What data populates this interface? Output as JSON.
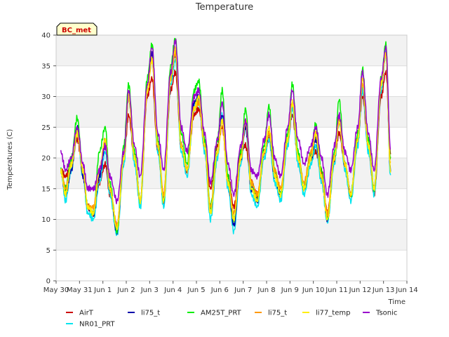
{
  "chart_data": {
    "type": "line",
    "title": "Temperature",
    "xlabel": "Time",
    "ylabel": "Temperatures (C)",
    "badge": "BC_met",
    "ylim": [
      0,
      40
    ],
    "yticks": [
      0,
      5,
      10,
      15,
      20,
      25,
      30,
      35,
      40
    ],
    "xlim": [
      0,
      15
    ],
    "xticks": [
      {
        "x": 0,
        "label": "May 30"
      },
      {
        "x": 1,
        "label": "May 31"
      },
      {
        "x": 2,
        "label": "Jun 1"
      },
      {
        "x": 3,
        "label": "Jun 2"
      },
      {
        "x": 4,
        "label": "Jun 3"
      },
      {
        "x": 5,
        "label": "Jun 4"
      },
      {
        "x": 6,
        "label": "Jun 5"
      },
      {
        "x": 7,
        "label": "Jun 6"
      },
      {
        "x": 8,
        "label": "Jun 7"
      },
      {
        "x": 9,
        "label": "Jun 8"
      },
      {
        "x": 10,
        "label": "Jun 9"
      },
      {
        "x": 11,
        "label": "Jun 10"
      },
      {
        "x": 12,
        "label": "Jun 11"
      },
      {
        "x": 13,
        "label": "Jun 12"
      },
      {
        "x": 14,
        "label": "Jun 13"
      },
      {
        "x": 15,
        "label": "Jun 14"
      }
    ],
    "grid": true,
    "legend_position": "bottom",
    "series": [
      {
        "name": "AirT",
        "color": "#cc0000",
        "x": [
          0.2,
          0.4,
          0.65,
          0.9,
          1.15,
          1.35,
          1.6,
          1.85,
          2.1,
          2.3,
          2.6,
          2.9,
          3.1,
          3.35,
          3.6,
          3.9,
          4.1,
          4.35,
          4.6,
          4.9,
          5.1,
          5.35,
          5.6,
          5.9,
          6.1,
          6.35,
          6.6,
          6.9,
          7.1,
          7.35,
          7.6,
          7.9,
          8.1,
          8.35,
          8.6,
          8.9,
          9.1,
          9.35,
          9.6,
          9.9,
          10.1,
          10.35,
          10.6,
          10.9,
          11.1,
          11.35,
          11.6,
          11.9,
          12.1,
          12.35,
          12.6,
          12.9,
          13.1,
          13.35,
          13.6,
          13.9,
          14.1,
          14.3
        ],
        "y": [
          18,
          17,
          19,
          23,
          18,
          12,
          11,
          16,
          19,
          14,
          9,
          20,
          27,
          20,
          13,
          30,
          33,
          21,
          14,
          31,
          34,
          22,
          18,
          27,
          28,
          22,
          15,
          22,
          25,
          17,
          12,
          21,
          22,
          16,
          14,
          21,
          23,
          18,
          14,
          23,
          27,
          20,
          15,
          20,
          21,
          18,
          11,
          20,
          24,
          19,
          14,
          23,
          30,
          22,
          14,
          30,
          34,
          21
        ]
      },
      {
        "name": "NR01_PRT",
        "color": "#00e5ee",
        "x": [
          0.2,
          0.4,
          0.65,
          0.9,
          1.15,
          1.35,
          1.6,
          1.85,
          2.1,
          2.3,
          2.6,
          2.9,
          3.1,
          3.35,
          3.6,
          3.9,
          4.1,
          4.35,
          4.6,
          4.9,
          5.1,
          5.35,
          5.6,
          5.9,
          6.1,
          6.35,
          6.6,
          6.9,
          7.1,
          7.35,
          7.6,
          7.9,
          8.1,
          8.35,
          8.6,
          8.9,
          9.1,
          9.35,
          9.6,
          9.9,
          10.1,
          10.35,
          10.6,
          10.9,
          11.1,
          11.35,
          11.6,
          11.9,
          12.1,
          12.35,
          12.6,
          12.9,
          13.1,
          13.35,
          13.6,
          13.9,
          14.1,
          14.3
        ],
        "y": [
          18,
          13,
          18,
          24,
          17,
          11,
          10,
          16,
          21,
          14,
          7.5,
          19,
          30,
          19,
          12,
          31,
          36,
          21,
          12,
          32,
          36,
          21,
          17,
          28,
          29,
          21,
          10,
          20,
          27,
          15,
          8,
          19,
          25,
          14,
          12,
          20,
          23,
          16,
          13,
          22,
          28,
          19,
          14,
          19,
          22,
          16,
          9.5,
          19,
          26,
          18,
          13,
          22,
          31,
          21,
          14,
          31,
          37,
          17
        ]
      },
      {
        "name": "li75_t",
        "color": "#0000aa",
        "x": [
          0.2,
          0.4,
          0.65,
          0.9,
          1.15,
          1.35,
          1.6,
          1.85,
          2.1,
          2.3,
          2.6,
          2.9,
          3.1,
          3.35,
          3.6,
          3.9,
          4.1,
          4.35,
          4.6,
          4.9,
          5.1,
          5.35,
          5.6,
          5.9,
          6.1,
          6.35,
          6.6,
          6.9,
          7.1,
          7.35,
          7.6,
          7.9,
          8.1,
          8.35,
          8.6,
          8.9,
          9.1,
          9.35,
          9.6,
          9.9,
          10.1,
          10.35,
          10.6,
          10.9,
          11.1,
          11.35,
          11.6,
          11.9,
          12.1,
          12.35,
          12.6,
          12.9,
          13.1,
          13.35,
          13.6,
          13.9,
          14.1,
          14.3
        ],
        "y": [
          18,
          14,
          18,
          25,
          17,
          12,
          11,
          17,
          22,
          15,
          8,
          20,
          30,
          20,
          13,
          31,
          37,
          22,
          13,
          33,
          37,
          22,
          18,
          29,
          30,
          22,
          11,
          21,
          27,
          16,
          9,
          20,
          25,
          15,
          13,
          21,
          24,
          17,
          14,
          23,
          29,
          20,
          15,
          20,
          23,
          17,
          10,
          20,
          26,
          19,
          14,
          23,
          32,
          22,
          15,
          32,
          37,
          18
        ]
      },
      {
        "name": "AM25T_PRT",
        "color": "#00ee00",
        "x": [
          0.2,
          0.4,
          0.65,
          0.9,
          1.15,
          1.35,
          1.6,
          1.85,
          2.1,
          2.3,
          2.6,
          2.9,
          3.1,
          3.35,
          3.6,
          3.9,
          4.1,
          4.35,
          4.6,
          4.9,
          5.1,
          5.35,
          5.6,
          5.9,
          6.1,
          6.35,
          6.6,
          6.9,
          7.1,
          7.35,
          7.6,
          7.9,
          8.1,
          8.35,
          8.6,
          8.9,
          9.1,
          9.35,
          9.6,
          9.9,
          10.1,
          10.35,
          10.6,
          10.9,
          11.1,
          11.35,
          11.6,
          11.9,
          12.1,
          12.35,
          12.6,
          12.9,
          13.1,
          13.35,
          13.6,
          13.9,
          14.1,
          14.3
        ],
        "y": [
          18,
          15,
          20,
          26.5,
          18,
          12,
          11,
          21,
          25,
          16,
          8,
          22,
          32,
          21,
          13,
          33,
          38.5,
          23,
          13,
          35,
          39.5,
          24,
          19,
          31,
          32.5,
          23,
          12,
          23,
          31,
          17,
          10,
          21,
          28,
          16,
          13,
          22,
          28.5,
          18,
          14,
          24,
          32,
          21,
          15,
          21,
          25.5,
          18,
          10,
          21,
          29.5,
          19,
          14,
          24,
          34.5,
          23,
          15,
          33,
          38.5,
          20
        ]
      },
      {
        "name": "li75_t",
        "color": "#ff9900",
        "x": [
          0.2,
          0.4,
          0.65,
          0.9,
          1.15,
          1.35,
          1.6,
          1.85,
          2.1,
          2.3,
          2.6,
          2.9,
          3.1,
          3.35,
          3.6,
          3.9,
          4.1,
          4.35,
          4.6,
          4.9,
          5.1,
          5.35,
          5.6,
          5.9,
          6.1,
          6.35,
          6.6,
          6.9,
          7.1,
          7.35,
          7.6,
          7.9,
          8.1,
          8.35,
          8.6,
          8.9,
          9.1,
          9.35,
          9.6,
          9.9,
          10.1,
          10.35,
          10.6,
          10.9,
          11.1,
          11.35,
          11.6,
          11.9,
          12.1,
          12.35,
          12.6,
          12.9,
          13.1,
          13.35,
          13.6,
          13.9,
          14.1,
          14.3
        ],
        "y": [
          18,
          15,
          19,
          24,
          18,
          12,
          12,
          18,
          23,
          15,
          9,
          20,
          30,
          20,
          13,
          31,
          36,
          22,
          14,
          33,
          37,
          22,
          18,
          28,
          29,
          22,
          12,
          21,
          26,
          16,
          11,
          20,
          26,
          16,
          14,
          21,
          24,
          18,
          15,
          23,
          29,
          20,
          16,
          21,
          24,
          17,
          11,
          20,
          26,
          19,
          14,
          23,
          32,
          22,
          15,
          32,
          37,
          19
        ]
      },
      {
        "name": "li77_temp",
        "color": "#ffee00",
        "x": [
          0.2,
          0.4,
          0.65,
          0.9,
          1.15,
          1.35,
          1.6,
          1.85,
          2.1,
          2.3,
          2.6,
          2.9,
          3.1,
          3.35,
          3.6,
          3.9,
          4.1,
          4.35,
          4.6,
          4.9,
          5.1,
          5.35,
          5.6,
          5.9,
          6.1,
          6.35,
          6.6,
          6.9,
          7.1,
          7.35,
          7.6,
          7.9,
          8.1,
          8.35,
          8.6,
          8.9,
          9.1,
          9.35,
          9.6,
          9.9,
          10.1,
          10.35,
          10.6,
          10.9,
          11.1,
          11.35,
          11.6,
          11.9,
          12.1,
          12.35,
          12.6,
          12.9,
          13.1,
          13.35,
          13.6,
          13.9,
          14.1,
          14.3
        ],
        "y": [
          18,
          14,
          19,
          24,
          18,
          12,
          11,
          18,
          23,
          15,
          8.5,
          20,
          30,
          20,
          13,
          31,
          36,
          22,
          13,
          33,
          38,
          22,
          18,
          28,
          30,
          22,
          11,
          21,
          26,
          16,
          10,
          20,
          26,
          15,
          13,
          21,
          25,
          17,
          14,
          23,
          29,
          20,
          15,
          20,
          24,
          17,
          10,
          20,
          26,
          19,
          14,
          23,
          33,
          22,
          15,
          32,
          37,
          18
        ]
      },
      {
        "name": "Tsonic",
        "color": "#9900cc",
        "x": [
          0.2,
          0.4,
          0.65,
          0.9,
          1.15,
          1.35,
          1.6,
          1.85,
          2.1,
          2.3,
          2.6,
          2.9,
          3.1,
          3.35,
          3.6,
          3.9,
          4.1,
          4.35,
          4.6,
          4.9,
          5.1,
          5.35,
          5.6,
          5.9,
          6.1,
          6.35,
          6.6,
          6.9,
          7.1,
          7.35,
          7.6,
          7.9,
          8.1,
          8.35,
          8.6,
          8.9,
          9.1,
          9.35,
          9.6,
          9.9,
          10.1,
          10.35,
          10.6,
          10.9,
          11.1,
          11.35,
          11.6,
          11.9,
          12.1,
          12.35,
          12.6,
          12.9,
          13.1,
          13.35,
          13.6,
          13.9,
          14.1,
          14.3
        ],
        "y": [
          21,
          18,
          20,
          25,
          19,
          15,
          15,
          18,
          22,
          17,
          13,
          21,
          31,
          22,
          17,
          32,
          38,
          24,
          18,
          34,
          39,
          25,
          21,
          30,
          31,
          24,
          16,
          23,
          29,
          19,
          14,
          22,
          26,
          18,
          17,
          23,
          27,
          20,
          17,
          25,
          31,
          23,
          19,
          22,
          25,
          20,
          14,
          22,
          27,
          21,
          18,
          25,
          34,
          24,
          18,
          33,
          38,
          21.5
        ]
      }
    ]
  }
}
